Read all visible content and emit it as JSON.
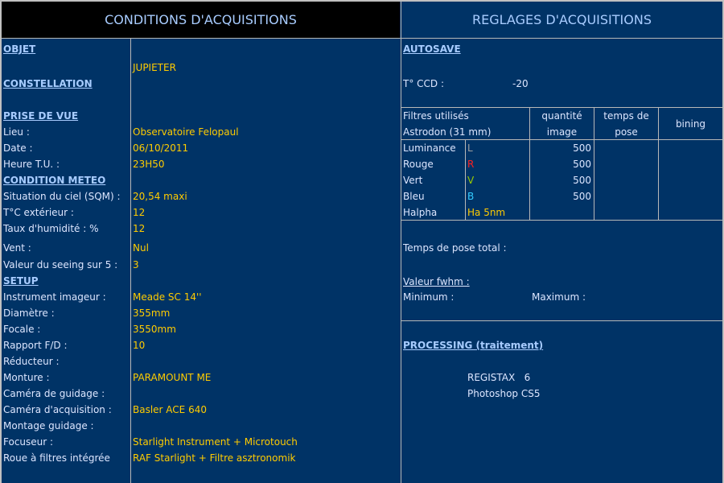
{
  "left": {
    "title": "CONDITIONS D'ACQUISITIONS",
    "rows": [
      {
        "label": "OBJET",
        "heading": true
      },
      {
        "label": "",
        "value": "JUPIETER"
      },
      {
        "label": "CONSTELLATION ",
        "heading": true
      },
      {
        "label": "PRISE DE VUE",
        "heading": true
      },
      {
        "label": "Lieu :",
        "value": "Observatoire Felopaul"
      },
      {
        "label": "Date :",
        "value": "06/10/2011"
      },
      {
        "label": "Heure T.U. :",
        "value": "23H50"
      },
      {
        "label": "CONDITION METEO ",
        "heading": true
      },
      {
        "label": "Situation du ciel (SQM) :",
        "value": "20,54 maxi"
      },
      {
        "label": "T°C extérieur :",
        "value": "12"
      },
      {
        "label": "Taux d'humidité : %",
        "value": "12"
      },
      {
        "label": "Vent :",
        "value": "Nul"
      },
      {
        "label": "Valeur du seeing sur 5 :",
        "value": "3"
      },
      {
        "label": "SETUP ",
        "heading": true
      },
      {
        "label": "Instrument imageur :",
        "value": "Meade SC 14''"
      },
      {
        "label": "Diamètre :",
        "value": "355mm"
      },
      {
        "label": "Focale :",
        "value": "3550mm"
      },
      {
        "label": "Rapport F/D :",
        "value": "10"
      },
      {
        "label": "Réducteur :",
        "value": ""
      },
      {
        "label": "Monture :",
        "value": "PARAMOUNT ME"
      },
      {
        "label": "Caméra de guidage :",
        "value": ""
      },
      {
        "label": "Caméra d'acquisition :",
        "value": "Basler ACE 640"
      },
      {
        "label": "Montage guidage :",
        "value": ""
      },
      {
        "label": "Focuseur :",
        "value": "Starlight Instrument + Microtouch"
      },
      {
        "label": "Roue à filtres intégrée",
        "value": "RAF Starlight + Filtre asztronomik"
      }
    ]
  },
  "right": {
    "title": "REGLAGES D'ACQUISITIONS",
    "autosave": "AUTOSAVE ",
    "ccd_label": "T° CCD :",
    "ccd_value": "-20",
    "filters_header": {
      "line1": "Filtres utilisés",
      "line2": "Astrodon (31 mm)",
      "qty1": "quantité",
      "qty2": "image",
      "pose1": "temps de",
      "pose2": "pose",
      "bining": "bining"
    },
    "filters": [
      {
        "name": "Luminance",
        "code": "L",
        "color": "#a0a0a0",
        "qty": "500"
      },
      {
        "name": "Rouge",
        "code": "R",
        "color": "#ff2020",
        "qty": "500"
      },
      {
        "name": "Vert",
        "code": "V",
        "color": "#99cc00",
        "qty": "500"
      },
      {
        "name": "Bleu",
        "code": "B",
        "color": "#33ccff",
        "qty": "500"
      },
      {
        "name": "Halpha",
        "code": "Ha 5nm",
        "color": "#ffcc00",
        "qty": ""
      }
    ],
    "total_pose": "Temps de pose total :",
    "fwhm": "Valeur fwhm :",
    "minimum": "Minimum :",
    "maximum": "Maximum :",
    "processing": "PROCESSING (traitement) ",
    "software": [
      "REGISTAX   6",
      "Photoshop CS5"
    ]
  }
}
